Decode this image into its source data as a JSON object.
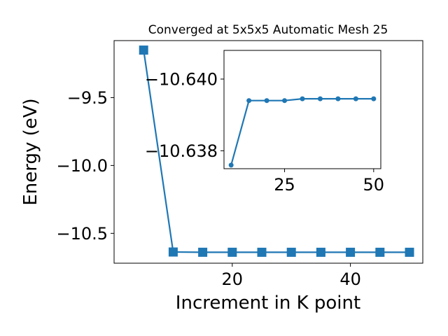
{
  "chart_data": [
    {
      "type": "line",
      "title": "Converged at 5x5x5 Automatic Mesh 25",
      "xlabel": "Increment in K point",
      "ylabel": "Energy (eV)",
      "x": [
        5,
        10,
        15,
        20,
        25,
        30,
        35,
        40,
        45,
        50
      ],
      "series": [
        {
          "values": [
            -9.15,
            -10.6376,
            -10.6394,
            -10.6394,
            -10.6395,
            -10.6395,
            -10.6395,
            -10.6395,
            -10.6395,
            -10.6395
          ]
        }
      ],
      "xlim": [
        0,
        52.25
      ],
      "ylim": [
        -10.72,
        -9.08
      ],
      "xticks": [
        20,
        40
      ],
      "xtick_labels": [
        "20",
        "40"
      ],
      "yticks": [
        -10.5,
        -10.0,
        -9.5
      ],
      "ytick_labels": [
        "−10.5",
        "−10.0",
        "−9.5"
      ],
      "marker": "square",
      "color": "#1f77b4",
      "grid": false
    },
    {
      "type": "line",
      "role": "inset",
      "x": [
        10,
        15,
        20,
        25,
        30,
        35,
        40,
        45,
        50
      ],
      "series": [
        {
          "values": [
            -10.6376,
            -10.6394,
            -10.6394,
            -10.6394,
            -10.63945,
            -10.63945,
            -10.63945,
            -10.63945,
            -10.63945
          ]
        }
      ],
      "xlim": [
        8.0,
        52.0
      ],
      "ylim": [
        -10.6375,
        -10.6408
      ],
      "xticks": [
        25,
        50
      ],
      "xtick_labels": [
        "25",
        "50"
      ],
      "yticks": [
        -10.638,
        -10.64
      ],
      "ytick_labels": [
        "−10.638",
        "−10.640"
      ],
      "marker": "circle",
      "color": "#1f77b4",
      "grid": false
    }
  ]
}
